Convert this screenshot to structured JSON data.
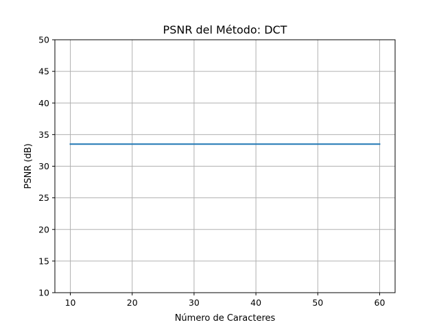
{
  "chart_data": {
    "type": "line",
    "title": "PSNR del Método: DCT",
    "xlabel": "Número de Caracteres",
    "ylabel": "PSNR (dB)",
    "xlim": [
      7.5,
      62.5
    ],
    "ylim": [
      10,
      50
    ],
    "xticks": [
      10,
      20,
      30,
      40,
      50,
      60
    ],
    "yticks": [
      10,
      15,
      20,
      25,
      30,
      35,
      40,
      45,
      50
    ],
    "grid": true,
    "legend": "none",
    "series": [
      {
        "color": "#1f77b4",
        "x": [
          10,
          20,
          30,
          40,
          50,
          60
        ],
        "y": [
          33.5,
          33.5,
          33.5,
          33.5,
          33.5,
          33.5
        ]
      }
    ]
  }
}
